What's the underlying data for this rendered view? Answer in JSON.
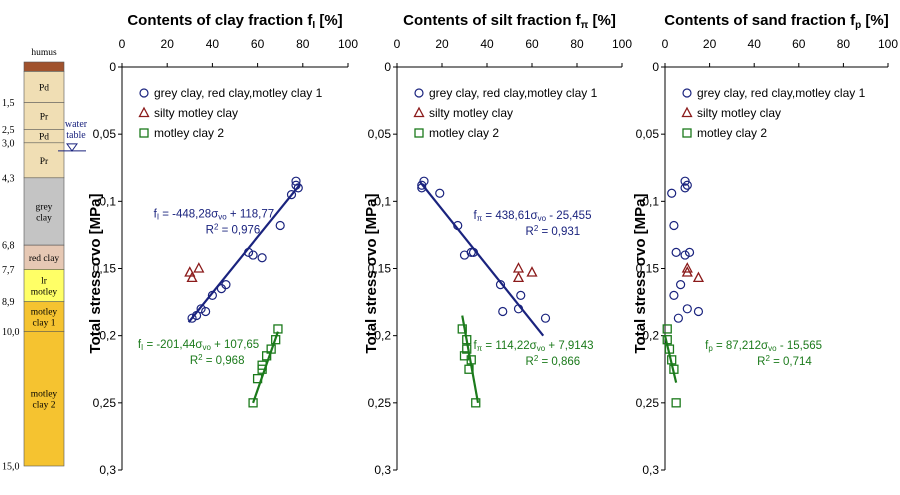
{
  "colors": {
    "series1": "#1a237e",
    "series2": "#8b1a1a",
    "series3": "#1b7a1b",
    "reg1": "#1a237e",
    "reg3": "#1b7a1b",
    "humus": "#a0522d",
    "layer_p": "#f0deb4",
    "grey_clay": "#c4c4c4",
    "red_clay": "#e6c8b4",
    "lr_motley": "#ffff66",
    "motley": "#f5c330",
    "water": "#1a237e"
  },
  "stratigraphy": {
    "humus_label": "humus",
    "water_label_1": "water",
    "water_label_2": "table",
    "water_depth": 3.3,
    "depths": [
      {
        "depth": 1.5,
        "label": "1,5"
      },
      {
        "depth": 2.5,
        "label": "2,5"
      },
      {
        "depth": 3.0,
        "label": "3,0"
      },
      {
        "depth": 4.3,
        "label": "4,3"
      },
      {
        "depth": 6.8,
        "label": "6,8"
      },
      {
        "depth": 7.7,
        "label": "7,7"
      },
      {
        "depth": 8.9,
        "label": "8,9"
      },
      {
        "depth": 10.0,
        "label": "10,0"
      },
      {
        "depth": 15.0,
        "label": "15,0"
      }
    ],
    "layers": [
      {
        "top": 0.0,
        "bottom": 0.35,
        "kind": "humus",
        "lines": []
      },
      {
        "top": 0.35,
        "bottom": 1.5,
        "kind": "layer_p",
        "lines": [
          "Pd"
        ]
      },
      {
        "top": 1.5,
        "bottom": 2.5,
        "kind": "layer_p",
        "lines": [
          "Pr"
        ]
      },
      {
        "top": 2.5,
        "bottom": 3.0,
        "kind": "layer_p",
        "lines": [
          "Pd"
        ]
      },
      {
        "top": 3.0,
        "bottom": 4.3,
        "kind": "layer_p",
        "lines": [
          "Pr"
        ]
      },
      {
        "top": 4.3,
        "bottom": 6.8,
        "kind": "grey_clay",
        "lines": [
          "grey",
          "clay"
        ]
      },
      {
        "top": 6.8,
        "bottom": 7.7,
        "kind": "red_clay",
        "lines": [
          "red clay"
        ]
      },
      {
        "top": 7.7,
        "bottom": 8.9,
        "kind": "lr_motley",
        "lines": [
          "lr",
          "motley"
        ]
      },
      {
        "top": 8.9,
        "bottom": 10.0,
        "kind": "motley",
        "lines": [
          "motley",
          "clay 1"
        ]
      },
      {
        "top": 10.0,
        "bottom": 15.0,
        "kind": "motley",
        "lines": [
          "motley",
          "clay 2"
        ]
      }
    ]
  },
  "chart_data": [
    {
      "type": "scatter",
      "title": "Contents of clay fraction f",
      "title_sub": "I",
      "title_unit": "[%]",
      "xlim": [
        0,
        100
      ],
      "xticks": [
        0,
        20,
        40,
        60,
        80,
        100
      ],
      "ylim": [
        0,
        0.3
      ],
      "yticks": [
        {
          "v": 0,
          "label": "0"
        },
        {
          "v": 0.05,
          "label": "0,05"
        },
        {
          "v": 0.1,
          "label": "0,1"
        },
        {
          "v": 0.15,
          "label": "0,15"
        },
        {
          "v": 0.2,
          "label": "0,2"
        },
        {
          "v": 0.25,
          "label": "0,25"
        },
        {
          "v": 0.3,
          "label": "0,3"
        }
      ],
      "ylabel": "Total stress",
      "ylabel_symbol": "σvo [MPa]",
      "y_inverted": true,
      "legend": [
        "grey clay, red clay,motley clay 1",
        "silty motley clay",
        "motley clay 2"
      ],
      "series": [
        {
          "name": "grey clay, red clay,motley clay 1",
          "marker": "circle",
          "points": [
            [
              77,
              0.085
            ],
            [
              77,
              0.088
            ],
            [
              78,
              0.09
            ],
            [
              75,
              0.095
            ],
            [
              70,
              0.118
            ],
            [
              56,
              0.138
            ],
            [
              58,
              0.14
            ],
            [
              62,
              0.142
            ],
            [
              46,
              0.162
            ],
            [
              44,
              0.165
            ],
            [
              40,
              0.17
            ],
            [
              35,
              0.18
            ],
            [
              37,
              0.182
            ],
            [
              33,
              0.185
            ],
            [
              31,
              0.187
            ]
          ]
        },
        {
          "name": "silty motley clay",
          "marker": "triangle",
          "points": [
            [
              34,
              0.15
            ],
            [
              30,
              0.153
            ],
            [
              31,
              0.157
            ]
          ]
        },
        {
          "name": "motley clay 2",
          "marker": "square",
          "points": [
            [
              69,
              0.195
            ],
            [
              68,
              0.203
            ],
            [
              66,
              0.21
            ],
            [
              64,
              0.215
            ],
            [
              62,
              0.222
            ],
            [
              62,
              0.225
            ],
            [
              60,
              0.232
            ],
            [
              58,
              0.25
            ]
          ]
        }
      ],
      "regressions": [
        {
          "series": 0,
          "x": [
            29.5,
            79
          ],
          "y": [
            0.19,
            0.087
          ]
        },
        {
          "series": 2,
          "x": [
            58,
            69
          ],
          "y": [
            0.25,
            0.197
          ]
        }
      ],
      "equations": [
        {
          "series": 0,
          "prefix": "f",
          "prefix_sub": "I",
          "rest": " = -448,28σ",
          "sig_sub": "vo",
          "tail": " + 118,77",
          "r2": "0,976",
          "x_val": 14,
          "y_val": 0.112
        },
        {
          "series": 2,
          "prefix": "f",
          "prefix_sub": "I",
          "rest": " = -201,44σ",
          "sig_sub": "vo",
          "tail": " + 107,65",
          "r2": "0,968",
          "x_val": 7,
          "y_val": 0.209
        }
      ]
    },
    {
      "type": "scatter",
      "title": "Contents of silt fraction f",
      "title_sub": "π",
      "title_unit": "[%]",
      "xlim": [
        0,
        100
      ],
      "xticks": [
        0,
        20,
        40,
        60,
        80,
        100
      ],
      "ylim": [
        0,
        0.3
      ],
      "yticks": [
        {
          "v": 0,
          "label": "0"
        },
        {
          "v": 0.05,
          "label": "0,05"
        },
        {
          "v": 0.1,
          "label": "0,1"
        },
        {
          "v": 0.15,
          "label": "0,15"
        },
        {
          "v": 0.2,
          "label": "0,2"
        },
        {
          "v": 0.25,
          "label": "0,25"
        },
        {
          "v": 0.3,
          "label": "0,3"
        }
      ],
      "ylabel": "Total stress",
      "ylabel_symbol": "σvo [MPa]",
      "y_inverted": true,
      "legend": [
        "grey clay, red clay,motley clay 1",
        "silty motley clay",
        "motley clay 2"
      ],
      "series": [
        {
          "name": "grey clay, red clay,motley clay 1",
          "marker": "circle",
          "points": [
            [
              12,
              0.085
            ],
            [
              11,
              0.088
            ],
            [
              11,
              0.09
            ],
            [
              19,
              0.094
            ],
            [
              27,
              0.118
            ],
            [
              33,
              0.138
            ],
            [
              34,
              0.138
            ],
            [
              30,
              0.14
            ],
            [
              46,
              0.162
            ],
            [
              55,
              0.17
            ],
            [
              54,
              0.18
            ],
            [
              47,
              0.182
            ],
            [
              66,
              0.187
            ]
          ]
        },
        {
          "name": "silty motley clay",
          "marker": "triangle",
          "points": [
            [
              54,
              0.15
            ],
            [
              60,
              0.153
            ],
            [
              54,
              0.157
            ]
          ]
        },
        {
          "name": "motley clay 2",
          "marker": "square",
          "points": [
            [
              29,
              0.195
            ],
            [
              31,
              0.203
            ],
            [
              31,
              0.21
            ],
            [
              30,
              0.215
            ],
            [
              33,
              0.218
            ],
            [
              32,
              0.225
            ],
            [
              35,
              0.25
            ]
          ]
        }
      ],
      "regressions": [
        {
          "series": 0,
          "x": [
            10,
            65
          ],
          "y": [
            0.085,
            0.2
          ]
        },
        {
          "series": 2,
          "x": [
            29,
            36
          ],
          "y": [
            0.185,
            0.25
          ]
        }
      ],
      "equations": [
        {
          "series": 0,
          "prefix": "f",
          "prefix_sub": "π",
          "rest": " = 438,61σ",
          "sig_sub": "vo",
          "tail": " - 25,455",
          "r2": "0,931",
          "x_val": 34,
          "y_val": 0.113
        },
        {
          "series": 2,
          "prefix": "f",
          "prefix_sub": "π",
          "rest": " = 114,22σ",
          "sig_sub": "vo",
          "tail": " + 7,9143",
          "r2": "0,866",
          "x_val": 34,
          "y_val": 0.21
        }
      ]
    },
    {
      "type": "scatter",
      "title": "Contents of sand fraction f",
      "title_sub": "p",
      "title_unit": "[%]",
      "xlim": [
        0,
        100
      ],
      "xticks": [
        0,
        20,
        40,
        60,
        80,
        100
      ],
      "ylim": [
        0,
        0.3
      ],
      "yticks": [
        {
          "v": 0,
          "label": "0"
        },
        {
          "v": 0.05,
          "label": "0,05"
        },
        {
          "v": 0.1,
          "label": "0,1"
        },
        {
          "v": 0.15,
          "label": "0,15"
        },
        {
          "v": 0.2,
          "label": "0,2"
        },
        {
          "v": 0.25,
          "label": "0,25"
        },
        {
          "v": 0.3,
          "label": "0,3"
        }
      ],
      "ylabel": "Total stress",
      "ylabel_symbol": "σvo [MPa]",
      "y_inverted": true,
      "legend": [
        "grey clay, red clay,motley clay 1",
        "silty motley clay",
        "motley clay 2"
      ],
      "series": [
        {
          "name": "grey clay, red clay,motley clay 1",
          "marker": "circle",
          "points": [
            [
              9,
              0.085
            ],
            [
              10,
              0.088
            ],
            [
              9,
              0.09
            ],
            [
              3,
              0.094
            ],
            [
              4,
              0.118
            ],
            [
              5,
              0.138
            ],
            [
              9,
              0.14
            ],
            [
              7,
              0.162
            ],
            [
              4,
              0.17
            ],
            [
              10,
              0.18
            ],
            [
              15,
              0.182
            ],
            [
              6,
              0.187
            ],
            [
              11,
              0.138
            ]
          ]
        },
        {
          "name": "silty motley clay",
          "marker": "triangle",
          "points": [
            [
              10,
              0.15
            ],
            [
              15,
              0.157
            ],
            [
              10,
              0.153
            ]
          ]
        },
        {
          "name": "motley clay 2",
          "marker": "square",
          "points": [
            [
              1,
              0.195
            ],
            [
              2,
              0.21
            ],
            [
              3,
              0.218
            ],
            [
              4,
              0.225
            ],
            [
              5,
              0.25
            ],
            [
              1,
              0.203
            ]
          ]
        }
      ],
      "regressions": [
        {
          "series": 2,
          "x": [
            0,
            5
          ],
          "y": [
            0.2,
            0.235
          ]
        }
      ],
      "equations": [
        {
          "series": 2,
          "prefix": "f",
          "prefix_sub": "p",
          "rest": " = 87,212σ",
          "sig_sub": "vo",
          "tail": " - 15,565",
          "r2": "0,714",
          "x_val": 18,
          "y_val": 0.21
        }
      ]
    }
  ]
}
